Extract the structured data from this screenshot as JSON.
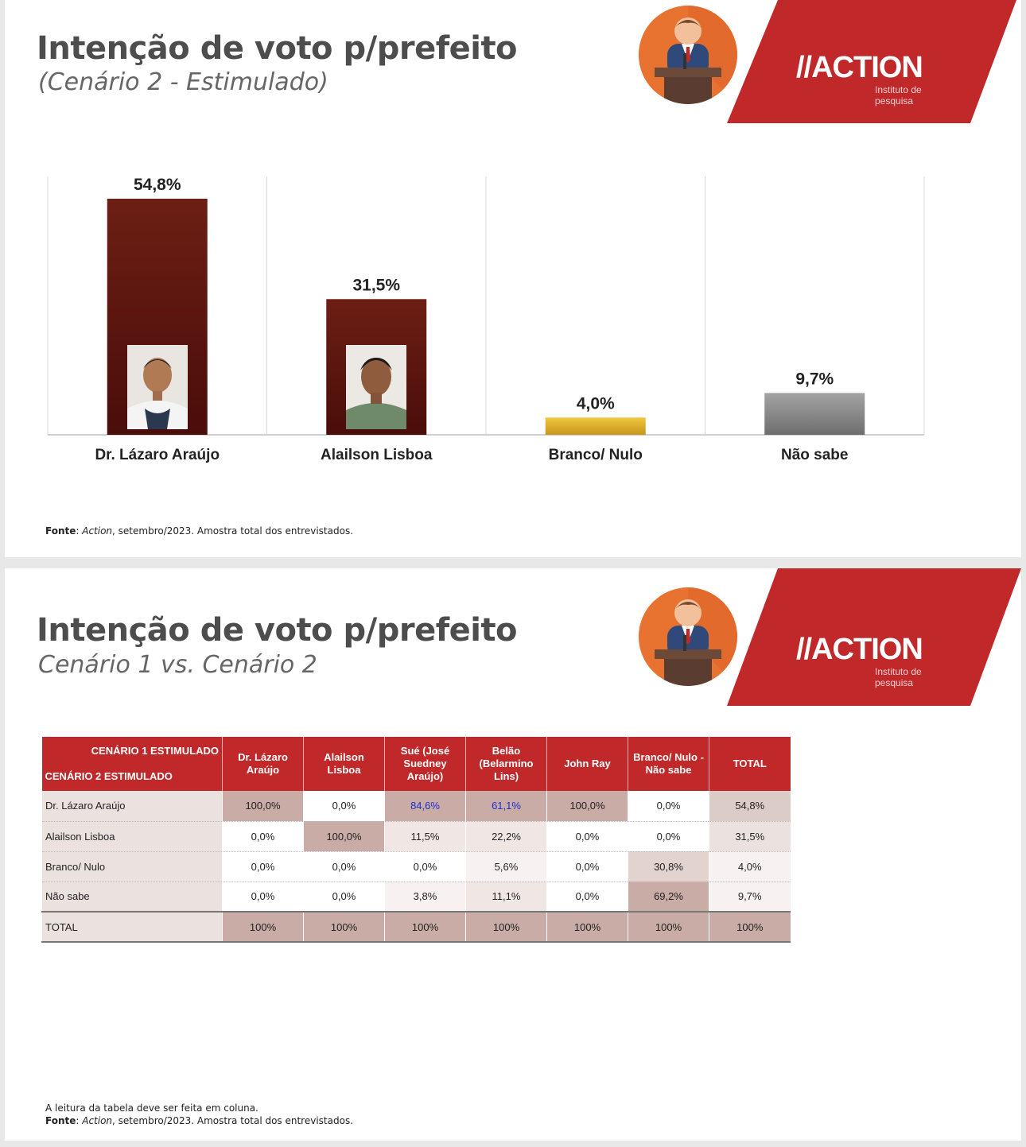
{
  "slide1": {
    "title": "Intenção de voto p/prefeito",
    "subtitle": "(Cenário 2 - Estimulado)",
    "logo": {
      "brand": "//ACTION",
      "tagline_1": "Instituto de",
      "tagline_2": "pesquisa"
    },
    "source_label": "Fonte",
    "source_brand": "Action",
    "source_text": ", setembro/2023. Amostra total dos entrevistados."
  },
  "slide2": {
    "title": "Intenção de voto p/prefeito",
    "subtitle": "Cenário 1 vs. Cenário 2",
    "logo": {
      "brand": "//ACTION",
      "tagline_1": "Instituto de",
      "tagline_2": "pesquisa"
    },
    "note": "A leitura da tabela deve ser feita em coluna.",
    "source_label": "Fonte",
    "source_brand": "Action",
    "source_text": ", setembro/2023. Amostra total dos entrevistados."
  },
  "chart_data": [
    {
      "type": "bar",
      "title": "Intenção de voto p/prefeito",
      "categories": [
        "Dr. Lázaro Araújo",
        "Alailson Lisboa",
        "Branco/ Nulo",
        "Não sabe"
      ],
      "values": [
        54.8,
        31.5,
        4.0,
        9.7
      ],
      "value_labels": [
        "54,8%",
        "31,5%",
        "4,0%",
        "9,7%"
      ],
      "colors": [
        "#6a1a13",
        "#6a1a13",
        "#e0b020",
        "#8a8a8a"
      ],
      "ylim": [
        0,
        60
      ],
      "grid": false
    },
    {
      "type": "table",
      "corner_top": "CENÁRIO 1 ESTIMULADO",
      "corner_bottom": "CENÁRIO 2 ESTIMULADO",
      "columns": [
        "Dr. Lázaro Araújo",
        "Alailson Lisboa",
        "Sué (José Suedney Araújo)",
        "Belão (Belarmino Lins)",
        "John Ray",
        "Branco/ Nulo - Não sabe",
        "TOTAL"
      ],
      "rows": [
        {
          "label": "Dr. Lázaro Araújo",
          "cells": [
            "100,0%",
            "0,0%",
            "84,6%",
            "61,1%",
            "100,0%",
            "0,0%",
            "54,8%"
          ]
        },
        {
          "label": "Alailson Lisboa",
          "cells": [
            "0,0%",
            "100,0%",
            "11,5%",
            "22,2%",
            "0,0%",
            "0,0%",
            "31,5%"
          ]
        },
        {
          "label": "Branco/ Nulo",
          "cells": [
            "0,0%",
            "0,0%",
            "0,0%",
            "5,6%",
            "0,0%",
            "30,8%",
            "4,0%"
          ]
        },
        {
          "label": "Não sabe",
          "cells": [
            "0,0%",
            "0,0%",
            "3,8%",
            "11,1%",
            "0,0%",
            "69,2%",
            "9,7%"
          ]
        },
        {
          "label": "TOTAL",
          "cells": [
            "100%",
            "100%",
            "100%",
            "100%",
            "100%",
            "100%",
            "100%"
          ]
        }
      ],
      "highlight_blue": [
        "84,6%",
        "61,1%"
      ]
    }
  ]
}
